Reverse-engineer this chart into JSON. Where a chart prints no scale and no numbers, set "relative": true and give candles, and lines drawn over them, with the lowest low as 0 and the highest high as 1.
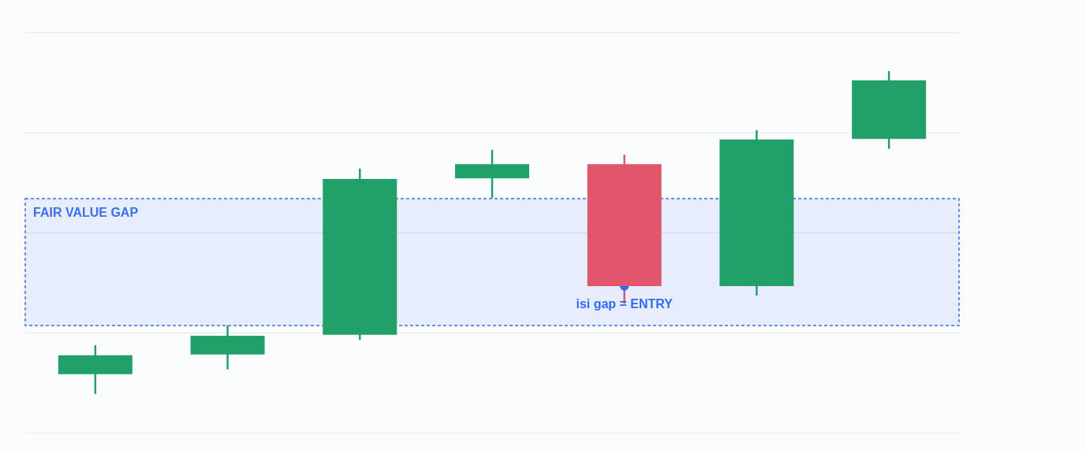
{
  "chart_data": {
    "type": "candlestick",
    "relative": true,
    "grid": "y",
    "categories": [
      null,
      null,
      null,
      null,
      null,
      null,
      null
    ],
    "ohlc": [
      [
        0.061,
        0.151,
        0.0,
        0.12
      ],
      [
        0.122,
        0.212,
        0.076,
        0.18
      ],
      [
        0.183,
        0.698,
        0.168,
        0.666
      ],
      [
        0.668,
        0.756,
        0.607,
        0.712
      ],
      [
        0.712,
        0.741,
        0.28,
        0.334
      ],
      [
        0.334,
        0.817,
        0.305,
        0.788
      ],
      [
        0.79,
        1.0,
        0.759,
        0.971
      ]
    ],
    "colors": [
      "#21a06a",
      "#21a06a",
      "#21a06a",
      "#21a06a",
      "#e0566b",
      "#21a06a",
      "#21a06a"
    ],
    "bands": [
      {
        "axis": "y",
        "from": 0.212,
        "to": 0.605,
        "label": "FAIR VALUE GAP",
        "color": "#3b6ff0"
      }
    ],
    "annotations": [
      {
        "text": "isi gap = ENTRY",
        "y": 0.334
      }
    ]
  }
}
